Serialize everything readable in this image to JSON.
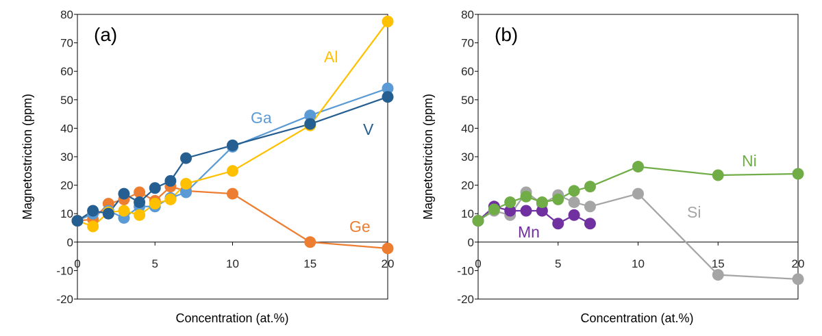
{
  "chart_data": [
    {
      "type": "line",
      "panel_label": "(a)",
      "xlabel": "Concentration (at.%)",
      "ylabel": "Magnetostriction (ppm)",
      "xlim": [
        0,
        20
      ],
      "ylim": [
        -20,
        80
      ],
      "x_ticks": [
        "0",
        "5",
        "10",
        "15",
        "20"
      ],
      "y_ticks": [
        "-20",
        "-10",
        "0",
        "10",
        "20",
        "30",
        "40",
        "50",
        "60",
        "70",
        "80"
      ],
      "grid": false,
      "legend": "none",
      "series": [
        {
          "name": "Ge",
          "color": "#ED7D31",
          "x": [
            0,
            1,
            2,
            3,
            4,
            5,
            6,
            7,
            10,
            15,
            20
          ],
          "y": [
            7.5,
            8,
            13.5,
            15,
            17.5,
            14.5,
            19.5,
            18,
            17,
            0,
            -2.2
          ]
        },
        {
          "name": "Ga",
          "color": "#5B9BD5",
          "x": [
            0,
            1,
            2,
            3,
            4,
            5,
            6,
            7,
            10,
            15,
            20
          ],
          "y": [
            7.5,
            10,
            11,
            8.5,
            12.5,
            12.5,
            15.5,
            17.5,
            33.5,
            44.5,
            54
          ]
        },
        {
          "name": "Al",
          "color": "#FFC000",
          "x": [
            0,
            1,
            2,
            3,
            4,
            5,
            6,
            7,
            10,
            15,
            20
          ],
          "y": [
            7.5,
            5.5,
            10.5,
            11,
            9.5,
            13.5,
            15,
            20.5,
            25,
            41,
            77.5
          ]
        },
        {
          "name": "V",
          "color": "#255E91",
          "x": [
            0,
            1,
            2,
            3,
            4,
            5,
            6,
            7,
            10,
            15,
            20
          ],
          "y": [
            7.5,
            11,
            10,
            17,
            14,
            19,
            21.5,
            29.5,
            34,
            41.5,
            51
          ]
        }
      ]
    },
    {
      "type": "line",
      "panel_label": "(b)",
      "xlabel": "Concentration (at.%)",
      "ylabel": "Magnetostriction (ppm)",
      "xlim": [
        0,
        20
      ],
      "ylim": [
        -20,
        80
      ],
      "x_ticks": [
        "0",
        "5",
        "10",
        "15",
        "20"
      ],
      "y_ticks": [
        "-20",
        "-10",
        "0",
        "10",
        "20",
        "30",
        "40",
        "50",
        "60",
        "70",
        "80"
      ],
      "grid": false,
      "legend": "none",
      "series": [
        {
          "name": "Si",
          "color": "#A5A5A5",
          "x": [
            0,
            1,
            2,
            3,
            4,
            5,
            6,
            7,
            10,
            15,
            20
          ],
          "y": [
            7.5,
            11,
            9.5,
            17.5,
            13.5,
            16.5,
            14,
            12.5,
            17,
            -11.5,
            -13
          ]
        },
        {
          "name": "Mn",
          "color": "#7030A0",
          "x": [
            0,
            1,
            2,
            3,
            4,
            5,
            6,
            7
          ],
          "y": [
            7.5,
            12.5,
            11,
            11,
            11,
            6.5,
            9.5,
            6.5
          ]
        },
        {
          "name": "Ni",
          "color": "#70AD47",
          "x": [
            0,
            1,
            2,
            3,
            4,
            5,
            6,
            7,
            10,
            15,
            20
          ],
          "y": [
            7.5,
            11.5,
            14,
            16,
            14,
            15,
            18,
            19.5,
            26.5,
            23.5,
            24
          ]
        }
      ]
    }
  ]
}
